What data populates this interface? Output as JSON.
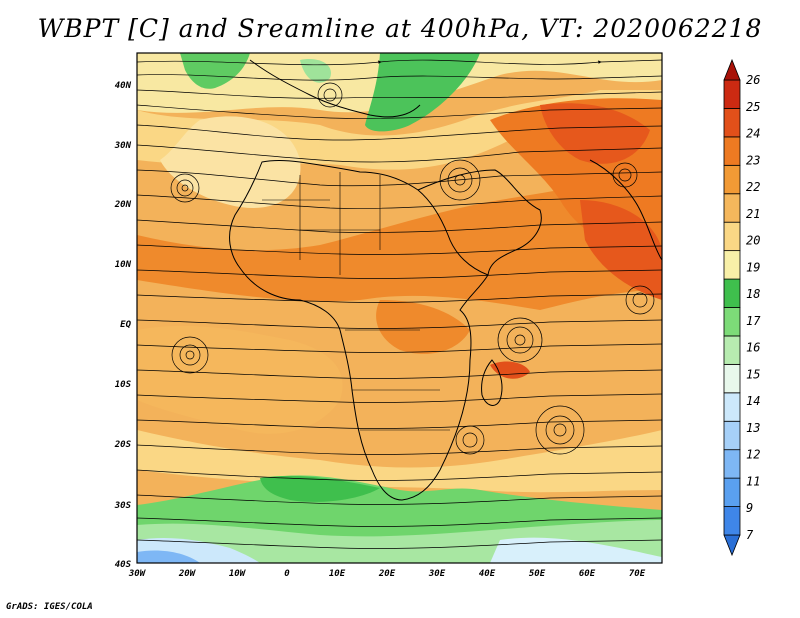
{
  "title": "WBPT [C] and Sreamline at 400hPa, VT: 2020062218",
  "credit": "GrADS: IGES/COLA",
  "map": {
    "region": "Africa and adjacent Atlantic / Indian Ocean",
    "lon_range": [
      -30,
      75
    ],
    "lat_range": [
      -40,
      45
    ],
    "lat_ticks": [
      "40N",
      "30N",
      "20N",
      "10N",
      "EQ",
      "10S",
      "20S",
      "30S",
      "40S"
    ],
    "lon_ticks": [
      "30W",
      "20W",
      "10W",
      "0",
      "10E",
      "20E",
      "30E",
      "40E",
      "50E",
      "60E",
      "70E"
    ]
  },
  "colorbar": {
    "labels": [
      "7",
      "9",
      "11",
      "12",
      "13",
      "14",
      "15",
      "16",
      "17",
      "18",
      "19",
      "20",
      "21",
      "22",
      "23",
      "24",
      "25",
      "26"
    ],
    "colors": [
      "#2a6fd6",
      "#3f86e8",
      "#5aa0f0",
      "#7eb7f5",
      "#a6d0f8",
      "#cce8fb",
      "#e8f8ec",
      "#b7ecb0",
      "#7ddb78",
      "#3fbf4d",
      "#f8f0a8",
      "#fad785",
      "#f5b75c",
      "#f29a35",
      "#ee7a22",
      "#e2501a",
      "#cc2a12",
      "#a81208"
    ]
  }
}
